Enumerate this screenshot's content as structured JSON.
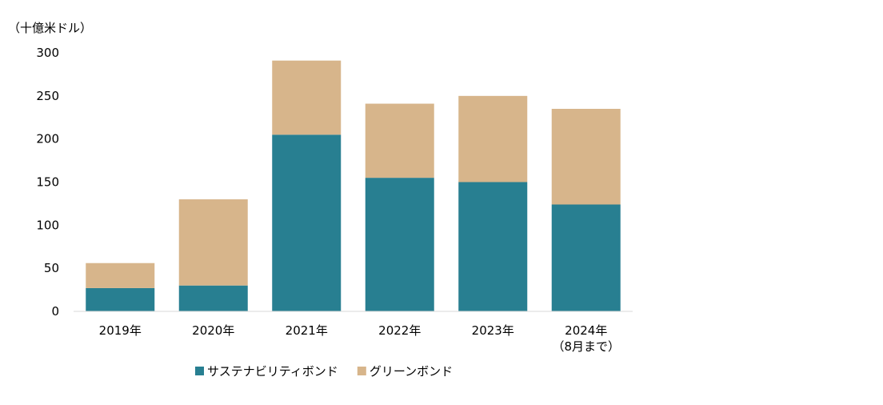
{
  "chart_data": {
    "type": "bar",
    "stacked": true,
    "unit_label": "（十億米ドル）",
    "categories": [
      "2019年",
      "2020年",
      "2021年",
      "2022年",
      "2023年",
      "2024年\n（8月まで）"
    ],
    "series": [
      {
        "name": "サステナビリティボンド",
        "color": "#287f91",
        "values": [
          27,
          30,
          205,
          155,
          150,
          124
        ]
      },
      {
        "name": "グリーンボンド",
        "color": "#d7b58b",
        "values": [
          29,
          100,
          86,
          86,
          100,
          111
        ]
      }
    ],
    "ylim": [
      0,
      300
    ],
    "yticks": [
      0,
      50,
      100,
      150,
      200,
      250,
      300
    ],
    "grid": false,
    "legend_position": "bottom"
  }
}
